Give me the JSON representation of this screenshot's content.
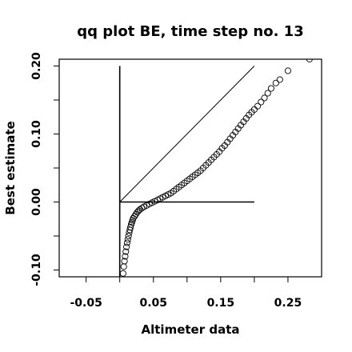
{
  "chart_data": {
    "type": "scatter",
    "title": "qq plot BE, time step no. 13",
    "xlabel": "Altimeter data",
    "ylabel": "Best estimate",
    "xlim": [
      -0.09,
      0.3
    ],
    "ylim": [
      -0.11,
      0.21
    ],
    "x_ticks": [
      -0.05,
      0.0,
      0.05,
      0.1,
      0.15,
      0.2,
      0.25
    ],
    "x_tick_labels": [
      "-0.05",
      "",
      "0.05",
      "",
      "0.15",
      "",
      "0.25"
    ],
    "y_ticks": [
      -0.1,
      -0.05,
      0.0,
      0.05,
      0.1,
      0.15,
      0.2
    ],
    "y_tick_labels": [
      "-0.10",
      "",
      "0.00",
      "",
      "0.10",
      "",
      "0.20"
    ],
    "grid": false,
    "reference_lines": [
      {
        "name": "identity",
        "x": [
          0.0,
          0.2
        ],
        "y": [
          0.0,
          0.2
        ]
      },
      {
        "name": "horizontal zero",
        "x": [
          0.0,
          0.2
        ],
        "y": [
          0.0,
          0.0
        ]
      },
      {
        "name": "vertical zero",
        "x": [
          0.0,
          0.0
        ],
        "y": [
          -0.11,
          0.2
        ]
      }
    ],
    "series": [
      {
        "marker": "open-circle",
        "points": [
          [
            0.005,
            -0.105
          ],
          [
            0.006,
            -0.095
          ],
          [
            0.007,
            -0.087
          ],
          [
            0.008,
            -0.08
          ],
          [
            0.009,
            -0.073
          ],
          [
            0.01,
            -0.066
          ],
          [
            0.011,
            -0.06
          ],
          [
            0.012,
            -0.055
          ],
          [
            0.013,
            -0.05
          ],
          [
            0.014,
            -0.045
          ],
          [
            0.015,
            -0.041
          ],
          [
            0.016,
            -0.037
          ],
          [
            0.017,
            -0.033
          ],
          [
            0.018,
            -0.03
          ],
          [
            0.019,
            -0.027
          ],
          [
            0.02,
            -0.024
          ],
          [
            0.022,
            -0.021
          ],
          [
            0.024,
            -0.018
          ],
          [
            0.026,
            -0.015
          ],
          [
            0.028,
            -0.013
          ],
          [
            0.03,
            -0.011
          ],
          [
            0.033,
            -0.009
          ],
          [
            0.036,
            -0.007
          ],
          [
            0.04,
            -0.005
          ],
          [
            0.044,
            -0.003
          ],
          [
            0.048,
            -0.001
          ],
          [
            0.052,
            0.001
          ],
          [
            0.056,
            0.003
          ],
          [
            0.06,
            0.005
          ],
          [
            0.064,
            0.007
          ],
          [
            0.068,
            0.009
          ],
          [
            0.072,
            0.011
          ],
          [
            0.076,
            0.013
          ],
          [
            0.08,
            0.016
          ],
          [
            0.084,
            0.019
          ],
          [
            0.088,
            0.022
          ],
          [
            0.092,
            0.025
          ],
          [
            0.096,
            0.028
          ],
          [
            0.1,
            0.031
          ],
          [
            0.104,
            0.034
          ],
          [
            0.108,
            0.037
          ],
          [
            0.112,
            0.04
          ],
          [
            0.116,
            0.043
          ],
          [
            0.12,
            0.046
          ],
          [
            0.124,
            0.05
          ],
          [
            0.128,
            0.054
          ],
          [
            0.132,
            0.058
          ],
          [
            0.136,
            0.062
          ],
          [
            0.14,
            0.066
          ],
          [
            0.144,
            0.07
          ],
          [
            0.148,
            0.074
          ],
          [
            0.152,
            0.079
          ],
          [
            0.156,
            0.083
          ],
          [
            0.16,
            0.088
          ],
          [
            0.164,
            0.093
          ],
          [
            0.168,
            0.098
          ],
          [
            0.172,
            0.103
          ],
          [
            0.176,
            0.108
          ],
          [
            0.18,
            0.113
          ],
          [
            0.184,
            0.118
          ],
          [
            0.188,
            0.123
          ],
          [
            0.192,
            0.128
          ],
          [
            0.196,
            0.132
          ],
          [
            0.2,
            0.136
          ],
          [
            0.205,
            0.141
          ],
          [
            0.21,
            0.147
          ],
          [
            0.215,
            0.153
          ],
          [
            0.22,
            0.16
          ],
          [
            0.225,
            0.167
          ],
          [
            0.232,
            0.175
          ],
          [
            0.238,
            0.18
          ],
          [
            0.25,
            0.193
          ],
          [
            0.282,
            0.21
          ]
        ]
      }
    ]
  }
}
